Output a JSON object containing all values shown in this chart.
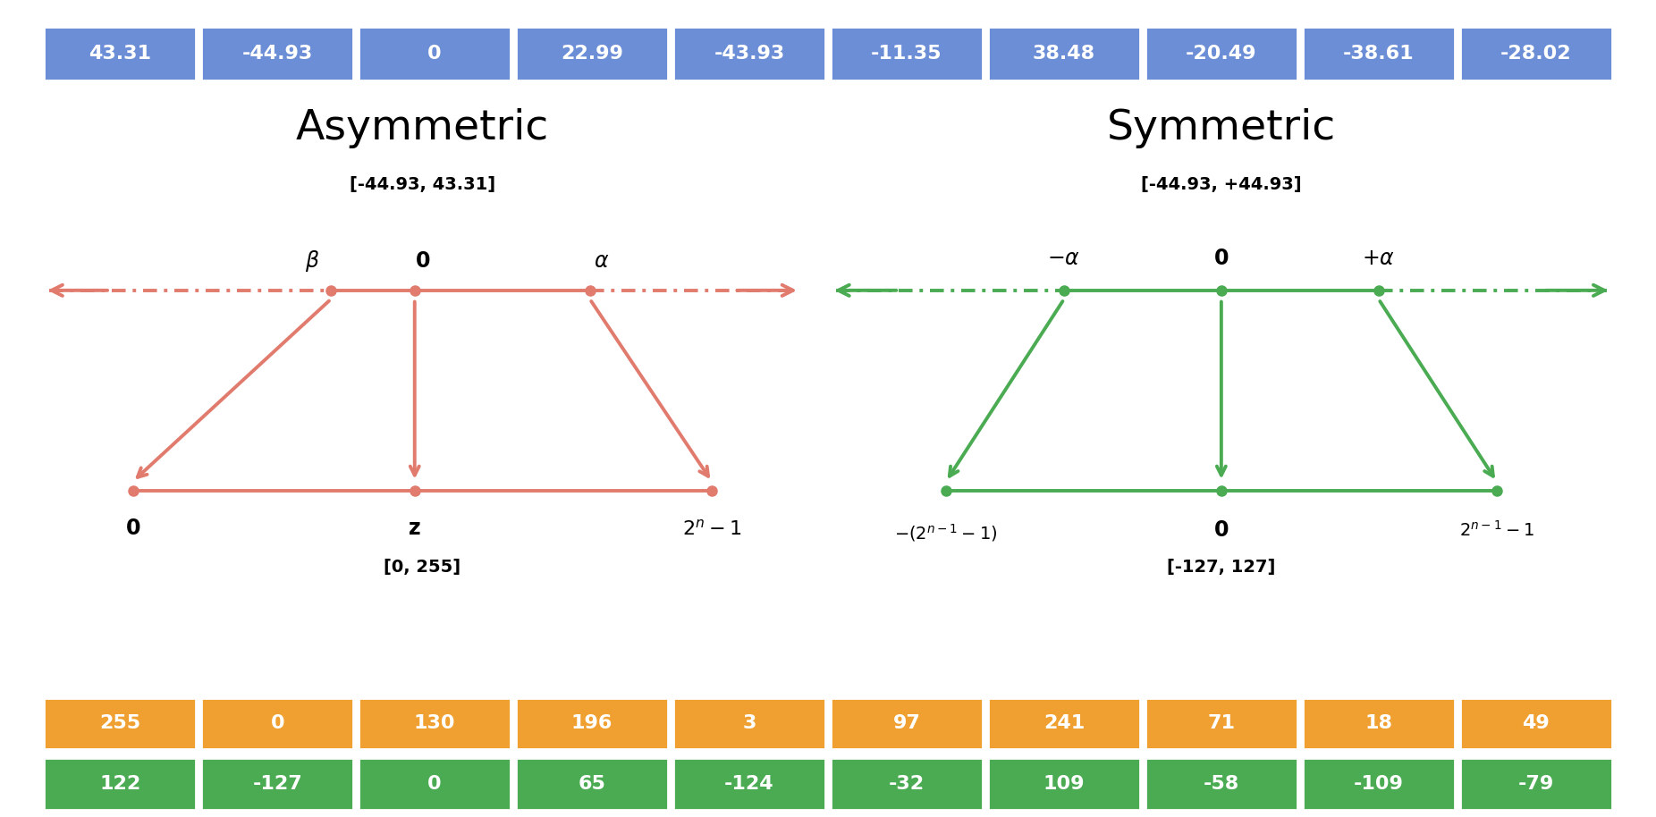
{
  "blue_row": [
    43.31,
    -44.93,
    0,
    22.99,
    -43.93,
    -11.35,
    38.48,
    -20.49,
    -38.61,
    -28.02
  ],
  "orange_row": [
    255,
    0,
    130,
    196,
    3,
    97,
    241,
    71,
    18,
    49
  ],
  "green_row": [
    122,
    -127,
    0,
    65,
    -124,
    -32,
    109,
    -58,
    -109,
    -79
  ],
  "blue_color": "#6b8ed6",
  "orange_color": "#f0a030",
  "green_color": "#4aab52",
  "asym_color": "#e07b6e",
  "sym_color": "#4aab52",
  "fig_width": 18.52,
  "fig_height": 9.14,
  "asym_title": "Asymmetric",
  "sym_title": "Symmetric",
  "asym_range": "[-44.93, 43.31]",
  "sym_range": "[-44.93, +44.93]",
  "asym_quant_range": "[0, 255]",
  "sym_quant_range": "[-127, 127]"
}
